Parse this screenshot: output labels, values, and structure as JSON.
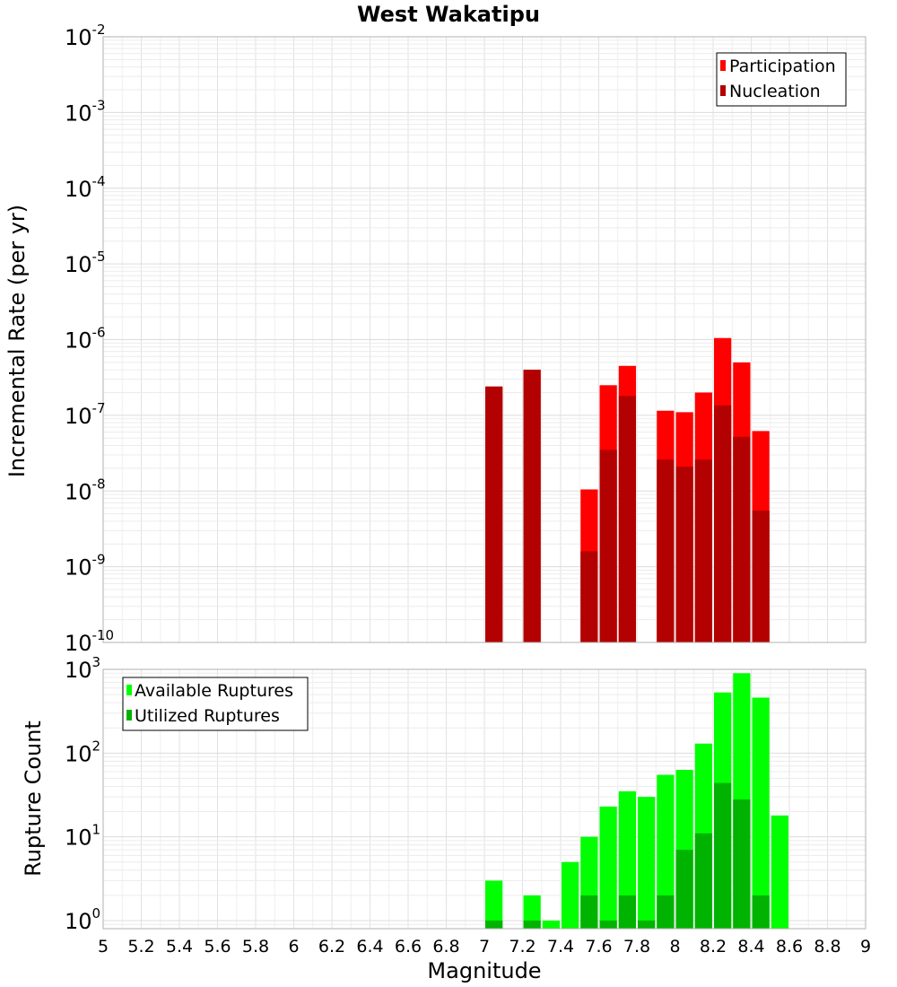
{
  "chart_data": [
    {
      "type": "bar",
      "panel": "top",
      "title": "West Wakatipu",
      "xlabel": "Magnitude",
      "ylabel": "Incremental Rate (per yr)",
      "yscale": "log",
      "xlim": [
        5,
        9
      ],
      "ylim": [
        1e-10,
        0.01
      ],
      "ytick_exponents": [
        "-10",
        "-9",
        "-8",
        "-7",
        "-6",
        "-5",
        "-4",
        "-3",
        "-2"
      ],
      "ytick_base": "10",
      "bin_width": 0.1,
      "legend_position": "top-right",
      "series": [
        {
          "name": "Participation",
          "color": "#ff0000",
          "x": [
            7.05,
            7.25,
            7.55,
            7.65,
            7.75,
            7.95,
            8.05,
            8.15,
            8.25,
            8.35,
            8.45
          ],
          "values": [
            2.4e-07,
            4e-07,
            1.05e-08,
            2.5e-07,
            4.5e-07,
            1.15e-07,
            1.1e-07,
            2e-07,
            1.05e-06,
            5e-07,
            6.2e-08
          ]
        },
        {
          "name": "Nucleation",
          "color": "#b30000",
          "x": [
            7.05,
            7.25,
            7.55,
            7.65,
            7.75,
            7.95,
            8.05,
            8.15,
            8.25,
            8.35,
            8.45
          ],
          "values": [
            2.4e-07,
            4e-07,
            1.6e-09,
            3.5e-08,
            1.8e-07,
            2.6e-08,
            2.1e-08,
            2.6e-08,
            1.35e-07,
            5.2e-08,
            5.5e-09
          ]
        }
      ]
    },
    {
      "type": "bar",
      "panel": "bottom",
      "xlabel": "Magnitude",
      "ylabel": "Rupture Count",
      "yscale": "log",
      "xlim": [
        5,
        9
      ],
      "ylim": [
        0.8,
        1000
      ],
      "ytick_exponents": [
        "0",
        "1",
        "2",
        "3"
      ],
      "ytick_base": "10",
      "xticks": [
        "5",
        "5.2",
        "5.4",
        "5.6",
        "5.8",
        "6",
        "6.2",
        "6.4",
        "6.6",
        "6.8",
        "7",
        "7.2",
        "7.4",
        "7.6",
        "7.8",
        "8",
        "8.2",
        "8.4",
        "8.6",
        "8.8",
        "9"
      ],
      "bin_width": 0.1,
      "legend_position": "top-left",
      "series": [
        {
          "name": "Available Ruptures",
          "color": "#00ff00",
          "x": [
            7.05,
            7.25,
            7.35,
            7.45,
            7.55,
            7.65,
            7.75,
            7.85,
            7.95,
            8.05,
            8.15,
            8.25,
            8.35,
            8.45,
            8.55
          ],
          "values": [
            3,
            2,
            1,
            5,
            10,
            23,
            35,
            30,
            55,
            63,
            130,
            530,
            900,
            460,
            18
          ]
        },
        {
          "name": "Utilized Ruptures",
          "color": "#00b300",
          "x": [
            7.05,
            7.25,
            7.35,
            7.45,
            7.55,
            7.65,
            7.75,
            7.85,
            7.95,
            8.05,
            8.15,
            8.25,
            8.35,
            8.45
          ],
          "values": [
            1,
            1,
            0,
            0,
            2,
            1,
            2,
            1,
            2,
            7,
            11,
            44,
            28,
            2
          ]
        }
      ]
    }
  ]
}
